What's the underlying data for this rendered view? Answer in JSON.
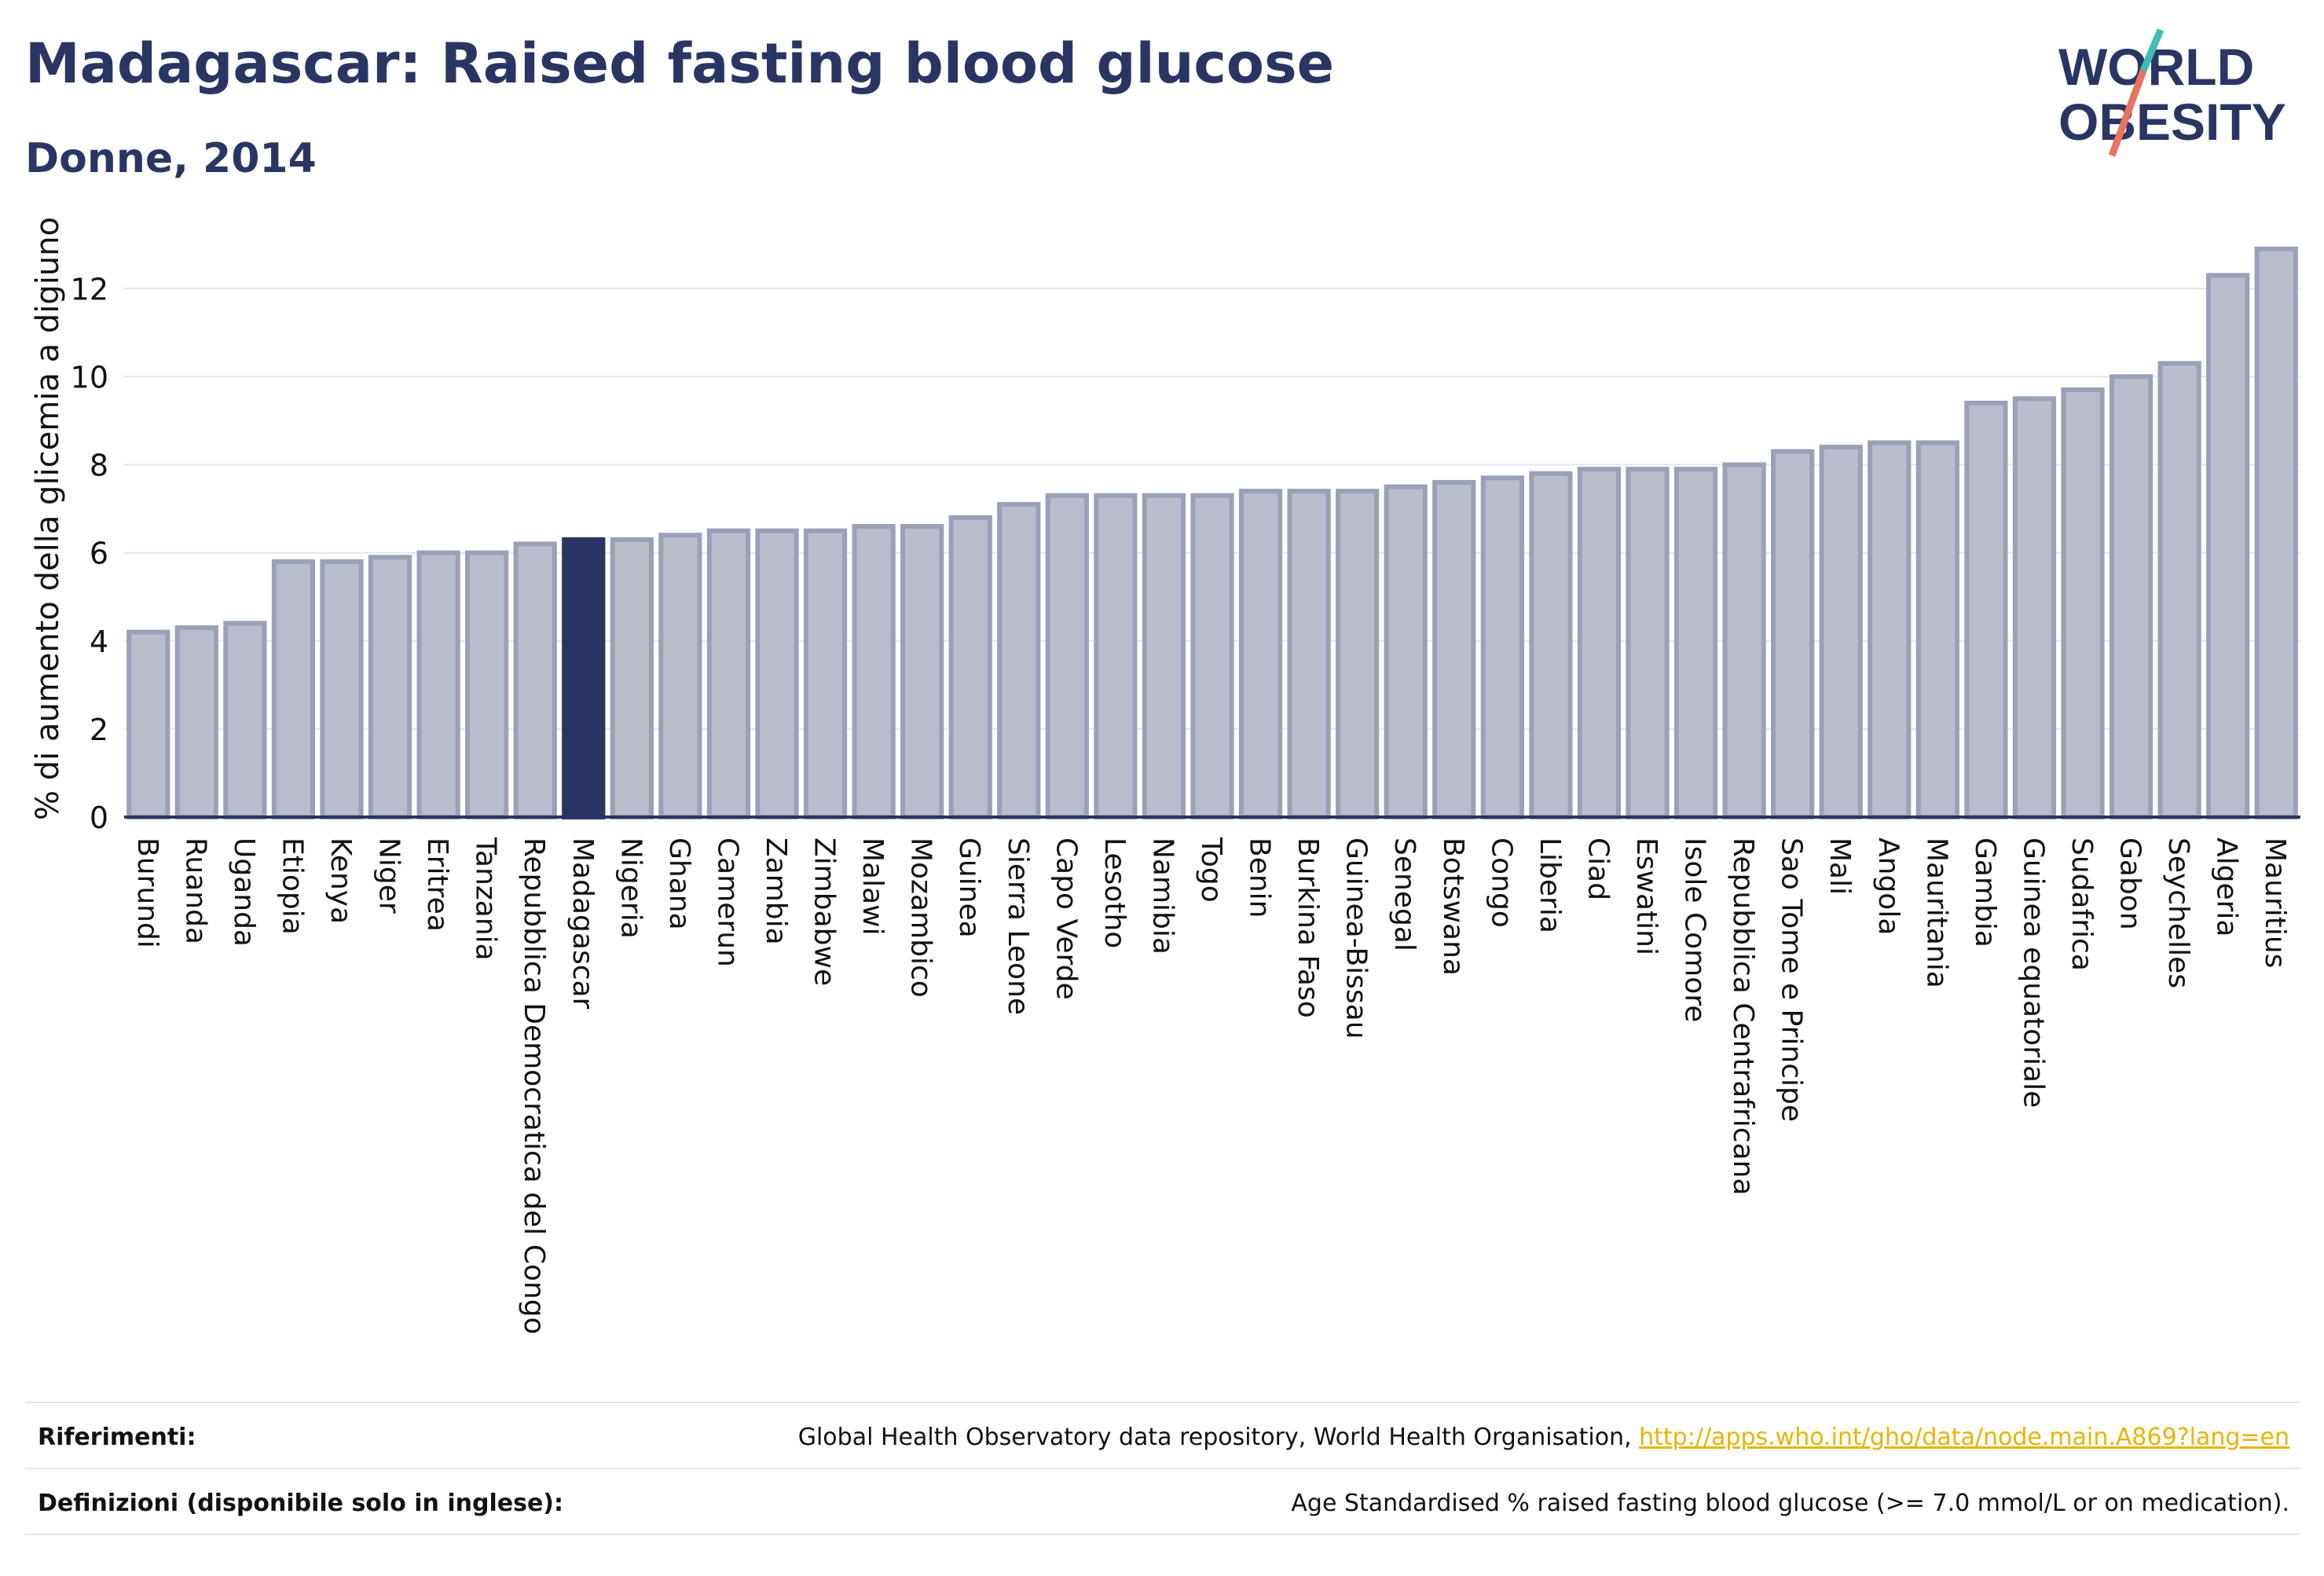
{
  "header": {
    "title": "Madagascar: Raised fasting blood glucose",
    "subtitle": "Donne, 2014"
  },
  "logo": {
    "line1": "WORLD",
    "line2": "OBESITY"
  },
  "colors": {
    "bar": "#b9bdcb",
    "bar_outline": "#9aa0b6",
    "highlight": "#2b3563",
    "text": "#2b3563",
    "grid": "#e3e5eb",
    "link": "#e8b400",
    "logo_teal": "#3dbdb5",
    "logo_coral": "#e8735f"
  },
  "chart_data": {
    "type": "bar",
    "title": "",
    "ylabel": "% di aumento della glicemia a digiuno",
    "xlabel": "",
    "ylim": [
      0,
      13.2
    ],
    "yticks": [
      0,
      2,
      4,
      6,
      8,
      10,
      12
    ],
    "grid": true,
    "highlight": "Madagascar",
    "categories": [
      "Burundi",
      "Ruanda",
      "Uganda",
      "Etiopia",
      "Kenya",
      "Niger",
      "Eritrea",
      "Tanzania",
      "Repubblica Democratica del Congo",
      "Madagascar",
      "Nigeria",
      "Ghana",
      "Camerun",
      "Zambia",
      "Zimbabwe",
      "Malawi",
      "Mozambico",
      "Guinea",
      "Sierra Leone",
      "Capo Verde",
      "Lesotho",
      "Namibia",
      "Togo",
      "Benin",
      "Burkina Faso",
      "Guinea-Bissau",
      "Senegal",
      "Botswana",
      "Congo",
      "Liberia",
      "Ciad",
      "Eswatini",
      "Isole Comore",
      "Repubblica Centrafricana",
      "Sao Tome e Principe",
      "Mali",
      "Angola",
      "Mauritania",
      "Gambia",
      "Guinea equatoriale",
      "Sudafrica",
      "Gabon",
      "Seychelles",
      "Algeria",
      "Mauritius"
    ],
    "values": [
      4.2,
      4.3,
      4.4,
      5.8,
      5.8,
      5.9,
      6.0,
      6.0,
      6.2,
      6.3,
      6.3,
      6.4,
      6.5,
      6.5,
      6.5,
      6.6,
      6.6,
      6.8,
      7.1,
      7.3,
      7.3,
      7.3,
      7.3,
      7.4,
      7.4,
      7.4,
      7.5,
      7.6,
      7.7,
      7.8,
      7.9,
      7.9,
      7.9,
      8.0,
      8.3,
      8.4,
      8.5,
      8.5,
      9.4,
      9.5,
      9.7,
      10.0,
      10.3,
      12.3,
      12.9
    ]
  },
  "footer": {
    "references_label": "Riferimenti:",
    "references_text": "Global Health Observatory data repository, World Health Organisation, ",
    "references_link": "http://apps.who.int/gho/data/node.main.A869?lang=en",
    "definitions_label": "Definizioni (disponibile solo in inglese):",
    "definitions_text": "Age Standardised % raised fasting blood glucose (>= 7.0 mmol/L or on medication)."
  }
}
